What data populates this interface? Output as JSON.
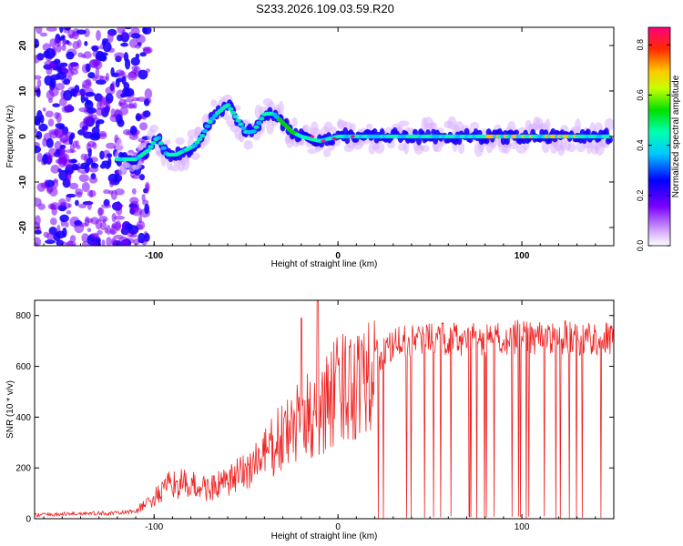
{
  "title": "S233.2026.109.03.59.R20",
  "chart_data": [
    {
      "type": "heatmap",
      "title": "S233.2026.109.03.59.R20",
      "xlabel": "Height of straight line (km)",
      "ylabel": "Frequency (Hz)",
      "xlim": [
        -165,
        150
      ],
      "ylim": [
        -24,
        24
      ],
      "xticks": [
        -100,
        0,
        100
      ],
      "yticks": [
        -20,
        -10,
        0,
        10,
        20
      ],
      "colorbar": {
        "label": "Normalized spectral amplitude",
        "range": [
          0,
          0.87
        ],
        "ticks": [
          0.0,
          0.2,
          0.4,
          0.6,
          0.8
        ]
      },
      "ridge": [
        {
          "x": -118,
          "f": -5
        },
        {
          "x": -110,
          "f": -5
        },
        {
          "x": -103,
          "f": -3
        },
        {
          "x": -98,
          "f": 0
        },
        {
          "x": -93,
          "f": -4
        },
        {
          "x": -88,
          "f": -4
        },
        {
          "x": -83,
          "f": -3
        },
        {
          "x": -78,
          "f": -2
        },
        {
          "x": -74,
          "f": 0
        },
        {
          "x": -70,
          "f": 3
        },
        {
          "x": -66,
          "f": 5
        },
        {
          "x": -60,
          "f": 7
        },
        {
          "x": -55,
          "f": 4
        },
        {
          "x": -50,
          "f": 1
        },
        {
          "x": -46,
          "f": 1
        },
        {
          "x": -40,
          "f": 5
        },
        {
          "x": -35,
          "f": 5
        },
        {
          "x": -30,
          "f": 3
        },
        {
          "x": -25,
          "f": 1
        },
        {
          "x": -20,
          "f": 0
        },
        {
          "x": -10,
          "f": -1
        },
        {
          "x": 0,
          "f": 0
        },
        {
          "x": 20,
          "f": 0
        },
        {
          "x": 60,
          "f": 0
        },
        {
          "x": 100,
          "f": 0
        },
        {
          "x": 148,
          "f": 0
        }
      ]
    },
    {
      "type": "line",
      "xlabel": "Height of straight line (km)",
      "ylabel": "SNR (10 * v/v)",
      "xlim": [
        -165,
        150
      ],
      "ylim": [
        0,
        860
      ],
      "xticks": [
        -100,
        0,
        100
      ],
      "yticks": [
        0,
        200,
        400,
        600,
        800
      ],
      "series": [
        {
          "name": "SNR",
          "color": "#ee2222",
          "envelope": [
            {
              "x": -165,
              "y": 15
            },
            {
              "x": -140,
              "y": 20
            },
            {
              "x": -120,
              "y": 22
            },
            {
              "x": -110,
              "y": 30
            },
            {
              "x": -100,
              "y": 80
            },
            {
              "x": -90,
              "y": 140
            },
            {
              "x": -80,
              "y": 130
            },
            {
              "x": -70,
              "y": 120
            },
            {
              "x": -60,
              "y": 140
            },
            {
              "x": -50,
              "y": 190
            },
            {
              "x": -40,
              "y": 250
            },
            {
              "x": -30,
              "y": 320
            },
            {
              "x": -20,
              "y": 380
            },
            {
              "x": -10,
              "y": 430
            },
            {
              "x": 0,
              "y": 500
            },
            {
              "x": 10,
              "y": 560
            },
            {
              "x": 20,
              "y": 630
            },
            {
              "x": 30,
              "y": 680
            },
            {
              "x": 40,
              "y": 700
            },
            {
              "x": 60,
              "y": 710
            },
            {
              "x": 80,
              "y": 700
            },
            {
              "x": 100,
              "y": 720
            },
            {
              "x": 120,
              "y": 710
            },
            {
              "x": 150,
              "y": 710
            }
          ],
          "spikes": [
            {
              "x": -20,
              "y": 790
            },
            {
              "x": -11,
              "y": 860
            }
          ]
        }
      ]
    }
  ]
}
